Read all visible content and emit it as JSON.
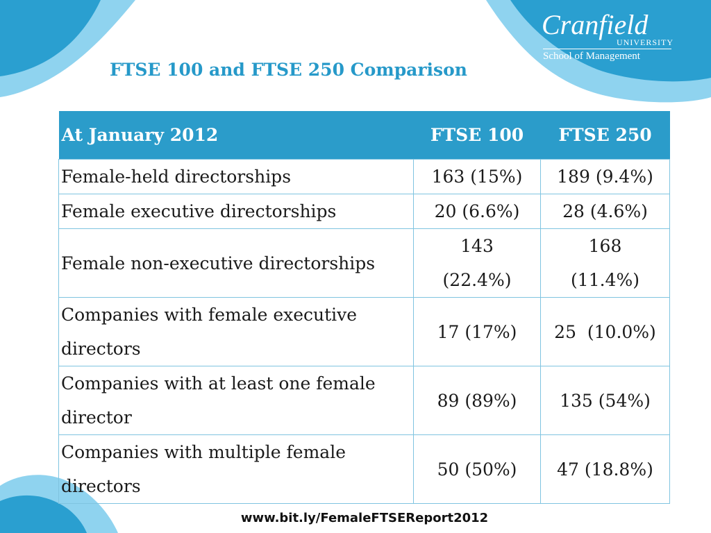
{
  "branding": {
    "logo_name": "Cranfield",
    "logo_university": "UNIVERSITY",
    "logo_school": "School of Management"
  },
  "slide_title": "FTSE 100 and FTSE 250 Comparison",
  "table": {
    "headers": [
      "At January 2012",
      "FTSE 100",
      "FTSE 250"
    ],
    "rows": [
      {
        "label": "Female-held directorships",
        "ftse100": "163 (15%)",
        "ftse250": "189 (9.4%)"
      },
      {
        "label": "Female executive directorships",
        "ftse100": "20 (6.6%)",
        "ftse250": "28 (4.6%)"
      },
      {
        "label": "Female non-executive directorships",
        "ftse100": "143 (22.4%)",
        "ftse250": "168 (11.4%)"
      },
      {
        "label": "Companies with female executive directors",
        "ftse100": "17 (17%)",
        "ftse250": "25  (10.0%)"
      },
      {
        "label": "Companies with at least one female director",
        "ftse100": "89 (89%)",
        "ftse250": "135 (54%)"
      },
      {
        "label": "Companies with multiple female directors",
        "ftse100": "50 (50%)",
        "ftse250": "47 (18.8%)"
      }
    ]
  },
  "footer_url": "www.bit.ly/FemaleFTSEReport2012",
  "colors": {
    "accent": "#2b9cca",
    "deco_light": "#8fd3ef",
    "deco_dark": "#2a9fd0",
    "border": "#7fc4e0"
  }
}
